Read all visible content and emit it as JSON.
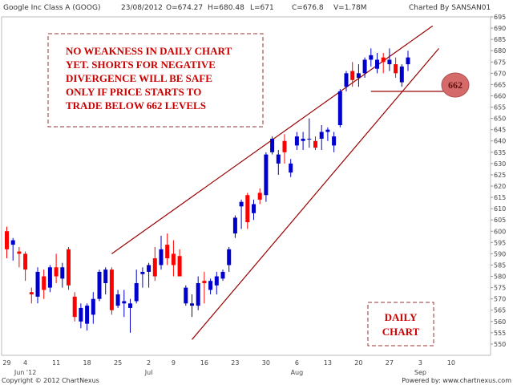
{
  "header": {
    "symbol": "Google Inc Class A (GOOG)",
    "date": "23/08/2012",
    "open": "O=674.27",
    "high": "H=680.48",
    "low": "L=671",
    "close": "C=676.8",
    "volume": "V=1.78M",
    "author": "Charted By SANSAN01"
  },
  "footer": {
    "copyright": "Copyright © 2012 ChartNexus",
    "powered": "Powered by: www.chartnexus.com"
  },
  "annotations": {
    "note_lines": [
      "NO WEAKNESS IN DAILY CHART",
      "YET. SHORTS FOR NEGATIVE",
      "DIVERGENCE WILL BE SAFE",
      "ONLY IF PRICE STARTS TO",
      "TRADE BELOW 662 LEVELS"
    ],
    "level_label": "662",
    "daily_lines": [
      "DAILY",
      "CHART"
    ]
  },
  "colors": {
    "up": "#0000cc",
    "down": "#ff0000",
    "trend": "#990000",
    "note_border": "#993333",
    "note_text": "#cc0000",
    "bubble": "#d46a6a",
    "frame": "#bbbbbb"
  },
  "chart_data": {
    "type": "candlestick",
    "y_range": [
      545,
      695
    ],
    "y_ticks": [
      550,
      555,
      560,
      565,
      570,
      575,
      580,
      585,
      590,
      595,
      600,
      605,
      610,
      615,
      620,
      625,
      630,
      635,
      640,
      645,
      650,
      655,
      660,
      665,
      670,
      675,
      680,
      685,
      690,
      695
    ],
    "x_ticks": [
      {
        "label": "29",
        "day": 0
      },
      {
        "label": "4",
        "day": 3
      },
      {
        "label": "11",
        "day": 8
      },
      {
        "label": "18",
        "day": 13
      },
      {
        "label": "25",
        "day": 18
      },
      {
        "label": "2",
        "day": 23
      },
      {
        "label": "9",
        "day": 27
      },
      {
        "label": "16",
        "day": 32
      },
      {
        "label": "23",
        "day": 37
      },
      {
        "label": "30",
        "day": 42
      },
      {
        "label": "6",
        "day": 47
      },
      {
        "label": "13",
        "day": 52
      },
      {
        "label": "20",
        "day": 57
      },
      {
        "label": "27",
        "day": 62
      },
      {
        "label": "3",
        "day": 67
      },
      {
        "label": "10",
        "day": 72
      }
    ],
    "month_labels": [
      {
        "label": "Jun '12",
        "day": 3
      },
      {
        "label": "Jul",
        "day": 23
      },
      {
        "label": "Aug",
        "day": 47
      },
      {
        "label": "Sep",
        "day": 67
      }
    ],
    "candles": [
      {
        "d": 0,
        "o": 600,
        "h": 602,
        "l": 588,
        "c": 592
      },
      {
        "d": 1,
        "o": 594,
        "h": 597,
        "l": 587,
        "c": 596
      },
      {
        "d": 2,
        "o": 591,
        "h": 593,
        "l": 584,
        "c": 590
      },
      {
        "d": 3,
        "o": 590,
        "h": 591,
        "l": 578,
        "c": 583
      },
      {
        "d": 4,
        "o": 573,
        "h": 575,
        "l": 568,
        "c": 572
      },
      {
        "d": 5,
        "o": 571,
        "h": 584,
        "l": 568,
        "c": 582
      },
      {
        "d": 6,
        "o": 580,
        "h": 583,
        "l": 570,
        "c": 574
      },
      {
        "d": 7,
        "o": 575,
        "h": 585,
        "l": 573,
        "c": 584
      },
      {
        "d": 8,
        "o": 584,
        "h": 590,
        "l": 577,
        "c": 580
      },
      {
        "d": 9,
        "o": 579,
        "h": 586,
        "l": 575,
        "c": 584
      },
      {
        "d": 10,
        "o": 592,
        "h": 593,
        "l": 574,
        "c": 576
      },
      {
        "d": 11,
        "o": 571,
        "h": 573,
        "l": 560,
        "c": 562
      },
      {
        "d": 12,
        "o": 560,
        "h": 568,
        "l": 557,
        "c": 566
      },
      {
        "d": 13,
        "o": 559,
        "h": 568,
        "l": 556,
        "c": 567
      },
      {
        "d": 14,
        "o": 563,
        "h": 573,
        "l": 559,
        "c": 570
      },
      {
        "d": 15,
        "o": 570,
        "h": 583,
        "l": 569,
        "c": 582
      },
      {
        "d": 16,
        "o": 577,
        "h": 584,
        "l": 572,
        "c": 583
      },
      {
        "d": 17,
        "o": 583,
        "h": 584,
        "l": 563,
        "c": 565
      },
      {
        "d": 18,
        "o": 567,
        "h": 574,
        "l": 566,
        "c": 572
      },
      {
        "d": 19,
        "o": 568,
        "h": 574,
        "l": 562,
        "c": 569
      },
      {
        "d": 20,
        "o": 566,
        "h": 570,
        "l": 555,
        "c": 568
      },
      {
        "d": 21,
        "o": 569,
        "h": 583,
        "l": 568,
        "c": 577
      },
      {
        "d": 22,
        "o": 581,
        "h": 584,
        "l": 575,
        "c": 582
      },
      {
        "d": 23,
        "o": 582,
        "h": 586,
        "l": 575,
        "c": 585
      },
      {
        "d": 24,
        "o": 588,
        "h": 593,
        "l": 578,
        "c": 580
      },
      {
        "d": 25,
        "o": 585,
        "h": 598,
        "l": 583,
        "c": 592
      },
      {
        "d": 26,
        "o": 594,
        "h": 599,
        "l": 585,
        "c": 588
      },
      {
        "d": 27,
        "o": 590,
        "h": 596,
        "l": 580,
        "c": 585
      },
      {
        "d": 28,
        "o": 589,
        "h": 592,
        "l": 580,
        "c": 580
      },
      {
        "d": 29,
        "o": 568,
        "h": 576,
        "l": 567,
        "c": 575
      },
      {
        "d": 30,
        "o": 567,
        "h": 572,
        "l": 562,
        "c": 568
      },
      {
        "d": 31,
        "o": 567,
        "h": 580,
        "l": 565,
        "c": 577
      },
      {
        "d": 32,
        "o": 578,
        "h": 582,
        "l": 568,
        "c": 577
      },
      {
        "d": 33,
        "o": 574,
        "h": 579,
        "l": 572,
        "c": 578
      },
      {
        "d": 34,
        "o": 576,
        "h": 582,
        "l": 572,
        "c": 580
      },
      {
        "d": 35,
        "o": 579,
        "h": 583,
        "l": 578,
        "c": 582
      },
      {
        "d": 36,
        "o": 585,
        "h": 593,
        "l": 582,
        "c": 592
      },
      {
        "d": 37,
        "o": 599,
        "h": 607,
        "l": 597,
        "c": 606
      },
      {
        "d": 38,
        "o": 611,
        "h": 614,
        "l": 601,
        "c": 613
      },
      {
        "d": 39,
        "o": 616,
        "h": 617,
        "l": 601,
        "c": 604
      },
      {
        "d": 40,
        "o": 608,
        "h": 614,
        "l": 605,
        "c": 612
      },
      {
        "d": 41,
        "o": 617,
        "h": 619,
        "l": 612,
        "c": 614
      },
      {
        "d": 42,
        "o": 616,
        "h": 635,
        "l": 613,
        "c": 634
      },
      {
        "d": 43,
        "o": 635,
        "h": 642,
        "l": 634,
        "c": 641
      },
      {
        "d": 44,
        "o": 630,
        "h": 636,
        "l": 625,
        "c": 634
      },
      {
        "d": 45,
        "o": 640,
        "h": 643,
        "l": 630,
        "c": 635
      },
      {
        "d": 46,
        "o": 626,
        "h": 632,
        "l": 624,
        "c": 630
      },
      {
        "d": 47,
        "o": 638,
        "h": 644,
        "l": 636,
        "c": 642
      },
      {
        "d": 48,
        "o": 640,
        "h": 644,
        "l": 636,
        "c": 641
      },
      {
        "d": 49,
        "o": 641,
        "h": 650,
        "l": 637,
        "c": 641
      },
      {
        "d": 50,
        "o": 640,
        "h": 642,
        "l": 636,
        "c": 637
      },
      {
        "d": 51,
        "o": 641,
        "h": 647,
        "l": 636,
        "c": 644
      },
      {
        "d": 52,
        "o": 644,
        "h": 646,
        "l": 640,
        "c": 645
      },
      {
        "d": 53,
        "o": 638,
        "h": 644,
        "l": 635,
        "c": 642
      },
      {
        "d": 54,
        "o": 647,
        "h": 663,
        "l": 646,
        "c": 662
      },
      {
        "d": 55,
        "o": 664,
        "h": 671,
        "l": 662,
        "c": 670
      },
      {
        "d": 56,
        "o": 671,
        "h": 675,
        "l": 664,
        "c": 667
      },
      {
        "d": 57,
        "o": 668,
        "h": 674,
        "l": 664,
        "c": 670
      },
      {
        "d": 58,
        "o": 670,
        "h": 677,
        "l": 668,
        "c": 676
      },
      {
        "d": 59,
        "o": 676,
        "h": 681,
        "l": 673,
        "c": 678
      },
      {
        "d": 60,
        "o": 672,
        "h": 679,
        "l": 670,
        "c": 676
      },
      {
        "d": 61,
        "o": 677,
        "h": 679,
        "l": 670,
        "c": 675
      },
      {
        "d": 62,
        "o": 674,
        "h": 681,
        "l": 671,
        "c": 676
      },
      {
        "d": 63,
        "o": 674,
        "h": 677,
        "l": 668,
        "c": 670
      },
      {
        "d": 64,
        "o": 666,
        "h": 674,
        "l": 664,
        "c": 673
      },
      {
        "d": 65,
        "o": 674,
        "h": 680,
        "l": 671,
        "c": 677
      }
    ],
    "trendlines": [
      {
        "name": "upper",
        "from": {
          "day": 17,
          "price": 590
        },
        "to": {
          "day": 69,
          "price": 691
        }
      },
      {
        "name": "lower",
        "from": {
          "day": 30,
          "price": 552
        },
        "to": {
          "day": 70,
          "price": 681
        }
      },
      {
        "name": "level",
        "from": {
          "day": 59,
          "price": 662
        },
        "to": {
          "day": 72,
          "price": 662
        }
      }
    ]
  }
}
